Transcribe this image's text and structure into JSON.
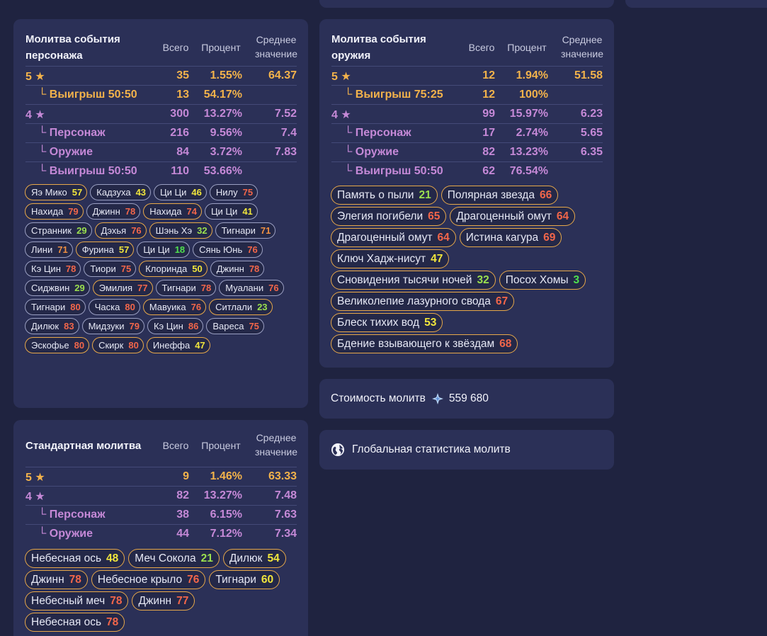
{
  "columns": {
    "total": "Всего",
    "percent": "Процент",
    "avg1": "Среднее",
    "avg2": "значение"
  },
  "char_banner": {
    "title1": "Молитва события",
    "title2": "персонажа",
    "rows": [
      {
        "label": "5 ★",
        "total": "35",
        "pct": "1.55%",
        "avg": "64.37",
        "cls": "gold",
        "indent": false
      },
      {
        "label": "└ Выигрыш 50:50",
        "total": "13",
        "pct": "54.17%",
        "avg": "",
        "cls": "gold",
        "indent": true
      },
      {
        "label": "4 ★",
        "total": "300",
        "pct": "13.27%",
        "avg": "7.52",
        "cls": "purp",
        "indent": false
      },
      {
        "label": "└ Персонаж",
        "total": "216",
        "pct": "9.56%",
        "avg": "7.4",
        "cls": "purp",
        "indent": true
      },
      {
        "label": "└ Оружие",
        "total": "84",
        "pct": "3.72%",
        "avg": "7.83",
        "cls": "purp",
        "indent": true
      },
      {
        "label": "└ Выигрыш 50:50",
        "total": "110",
        "pct": "53.66%",
        "avg": "",
        "cls": "purp",
        "indent": true
      }
    ],
    "pulls": [
      {
        "name": "Яэ Мико",
        "n": "57",
        "b": "g",
        "c": "yel"
      },
      {
        "name": "Кадзуха",
        "n": "43",
        "b": "p",
        "c": "yel"
      },
      {
        "name": "Ци Ци",
        "n": "46",
        "b": "p",
        "c": "yel"
      },
      {
        "name": "Нилу",
        "n": "75",
        "b": "p",
        "c": "red"
      },
      {
        "name": "Нахида",
        "n": "79",
        "b": "g",
        "c": "red"
      },
      {
        "name": "Джинн",
        "n": "78",
        "b": "p",
        "c": "red"
      },
      {
        "name": "Нахида",
        "n": "74",
        "b": "g",
        "c": "red"
      },
      {
        "name": "Ци Ци",
        "n": "41",
        "b": "p",
        "c": "yel"
      },
      {
        "name": "Странник",
        "n": "29",
        "b": "p",
        "c": "grn"
      },
      {
        "name": "Дэхья",
        "n": "76",
        "b": "g",
        "c": "red"
      },
      {
        "name": "Шэнь Хэ",
        "n": "32",
        "b": "g",
        "c": "grn"
      },
      {
        "name": "Тигнари",
        "n": "71",
        "b": "p",
        "c": "org"
      },
      {
        "name": "Лини",
        "n": "71",
        "b": "p",
        "c": "org"
      },
      {
        "name": "Фурина",
        "n": "57",
        "b": "g",
        "c": "yel"
      },
      {
        "name": "Ци Ци",
        "n": "18",
        "b": "p",
        "c": "lgr"
      },
      {
        "name": "Сянь Юнь",
        "n": "76",
        "b": "p",
        "c": "red"
      },
      {
        "name": "Кэ Цин",
        "n": "78",
        "b": "p",
        "c": "red"
      },
      {
        "name": "Тиори",
        "n": "75",
        "b": "p",
        "c": "red"
      },
      {
        "name": "Клоринда",
        "n": "50",
        "b": "g",
        "c": "yel"
      },
      {
        "name": "Джинн",
        "n": "78",
        "b": "p",
        "c": "red"
      },
      {
        "name": "Сиджвин",
        "n": "29",
        "b": "p",
        "c": "grn"
      },
      {
        "name": "Эмилия",
        "n": "77",
        "b": "g",
        "c": "red"
      },
      {
        "name": "Тигнари",
        "n": "78",
        "b": "p",
        "c": "red"
      },
      {
        "name": "Муалани",
        "n": "76",
        "b": "p",
        "c": "red"
      },
      {
        "name": "Тигнари",
        "n": "80",
        "b": "p",
        "c": "red"
      },
      {
        "name": "Часка",
        "n": "80",
        "b": "p",
        "c": "red"
      },
      {
        "name": "Мавуика",
        "n": "76",
        "b": "g",
        "c": "red"
      },
      {
        "name": "Ситлали",
        "n": "23",
        "b": "g",
        "c": "grn"
      },
      {
        "name": "Дилюк",
        "n": "83",
        "b": "p",
        "c": "red"
      },
      {
        "name": "Мидзуки",
        "n": "79",
        "b": "p",
        "c": "red"
      },
      {
        "name": "Кэ Цин",
        "n": "86",
        "b": "p",
        "c": "red"
      },
      {
        "name": "Вареса",
        "n": "75",
        "b": "p",
        "c": "red"
      },
      {
        "name": "Эскофье",
        "n": "80",
        "b": "g",
        "c": "red"
      },
      {
        "name": "Скирк",
        "n": "80",
        "b": "g",
        "c": "red"
      },
      {
        "name": "Инеффа",
        "n": "47",
        "b": "g",
        "c": "yel"
      }
    ]
  },
  "weapon_banner": {
    "title1": "Молитва события",
    "title2": "оружия",
    "rows": [
      {
        "label": "5 ★",
        "total": "12",
        "pct": "1.94%",
        "avg": "51.58",
        "cls": "gold",
        "indent": false
      },
      {
        "label": "└ Выигрыш 75:25",
        "total": "12",
        "pct": "100%",
        "avg": "",
        "cls": "gold",
        "indent": true
      },
      {
        "label": "4 ★",
        "total": "99",
        "pct": "15.97%",
        "avg": "6.23",
        "cls": "purp",
        "indent": false
      },
      {
        "label": "└ Персонаж",
        "total": "17",
        "pct": "2.74%",
        "avg": "5.65",
        "cls": "purp",
        "indent": true
      },
      {
        "label": "└ Оружие",
        "total": "82",
        "pct": "13.23%",
        "avg": "6.35",
        "cls": "purp",
        "indent": true
      },
      {
        "label": "└ Выигрыш 50:50",
        "total": "62",
        "pct": "76.54%",
        "avg": "",
        "cls": "purp",
        "indent": true
      }
    ],
    "pulls": [
      {
        "name": "Память о пыли",
        "n": "21",
        "b": "g",
        "c": "grn"
      },
      {
        "name": "Полярная звезда",
        "n": "66",
        "b": "g",
        "c": "red"
      },
      {
        "name": "Элегия погибели",
        "n": "65",
        "b": "g",
        "c": "red"
      },
      {
        "name": "Драгоценный омут",
        "n": "64",
        "b": "g",
        "c": "red"
      },
      {
        "name": "Драгоценный омут",
        "n": "64",
        "b": "g",
        "c": "red"
      },
      {
        "name": "Истина кагура",
        "n": "69",
        "b": "g",
        "c": "red"
      },
      {
        "name": "Ключ Хадж-нисут",
        "n": "47",
        "b": "g",
        "c": "yel"
      },
      {
        "name": "Сновидения тысячи ночей",
        "n": "32",
        "b": "g",
        "c": "grn"
      },
      {
        "name": "Посох Хомы",
        "n": "3",
        "b": "g",
        "c": "lgr"
      },
      {
        "name": "Великолепие лазурного свода",
        "n": "67",
        "b": "g",
        "c": "red"
      },
      {
        "name": "Блеск тихих вод",
        "n": "53",
        "b": "g",
        "c": "yel"
      },
      {
        "name": "Бдение взывающего к звёздам",
        "n": "68",
        "b": "g",
        "c": "red"
      }
    ]
  },
  "standard_banner": {
    "title": "Стандартная молитва",
    "rows": [
      {
        "label": "5 ★",
        "total": "9",
        "pct": "1.46%",
        "avg": "63.33",
        "cls": "gold",
        "indent": false
      },
      {
        "label": "4 ★",
        "total": "82",
        "pct": "13.27%",
        "avg": "7.48",
        "cls": "purp",
        "indent": false
      },
      {
        "label": "└ Персонаж",
        "total": "38",
        "pct": "6.15%",
        "avg": "7.63",
        "cls": "purp",
        "indent": true
      },
      {
        "label": "└ Оружие",
        "total": "44",
        "pct": "7.12%",
        "avg": "7.34",
        "cls": "purp",
        "indent": true
      }
    ],
    "pulls": [
      {
        "name": "Небесная ось",
        "n": "48",
        "b": "g",
        "c": "yel"
      },
      {
        "name": "Меч Сокола",
        "n": "21",
        "b": "g",
        "c": "grn"
      },
      {
        "name": "Дилюк",
        "n": "54",
        "b": "g",
        "c": "yel"
      },
      {
        "name": "Джинн",
        "n": "78",
        "b": "g",
        "c": "red"
      },
      {
        "name": "Небесное крыло",
        "n": "76",
        "b": "g",
        "c": "red"
      },
      {
        "name": "Тигнари",
        "n": "60",
        "b": "g",
        "c": "yel"
      },
      {
        "name": "Небесный меч",
        "n": "78",
        "b": "g",
        "c": "red"
      },
      {
        "name": "Джинн",
        "n": "77",
        "b": "g",
        "c": "red"
      },
      {
        "name": "Небесная ось",
        "n": "78",
        "b": "g",
        "c": "red"
      }
    ]
  },
  "cost": {
    "label": "Стоимость молитв",
    "icon": "primogem-icon",
    "value": "559 680"
  },
  "global": {
    "label": "Глобальная статистика молитв",
    "icon": "globe-icon"
  }
}
